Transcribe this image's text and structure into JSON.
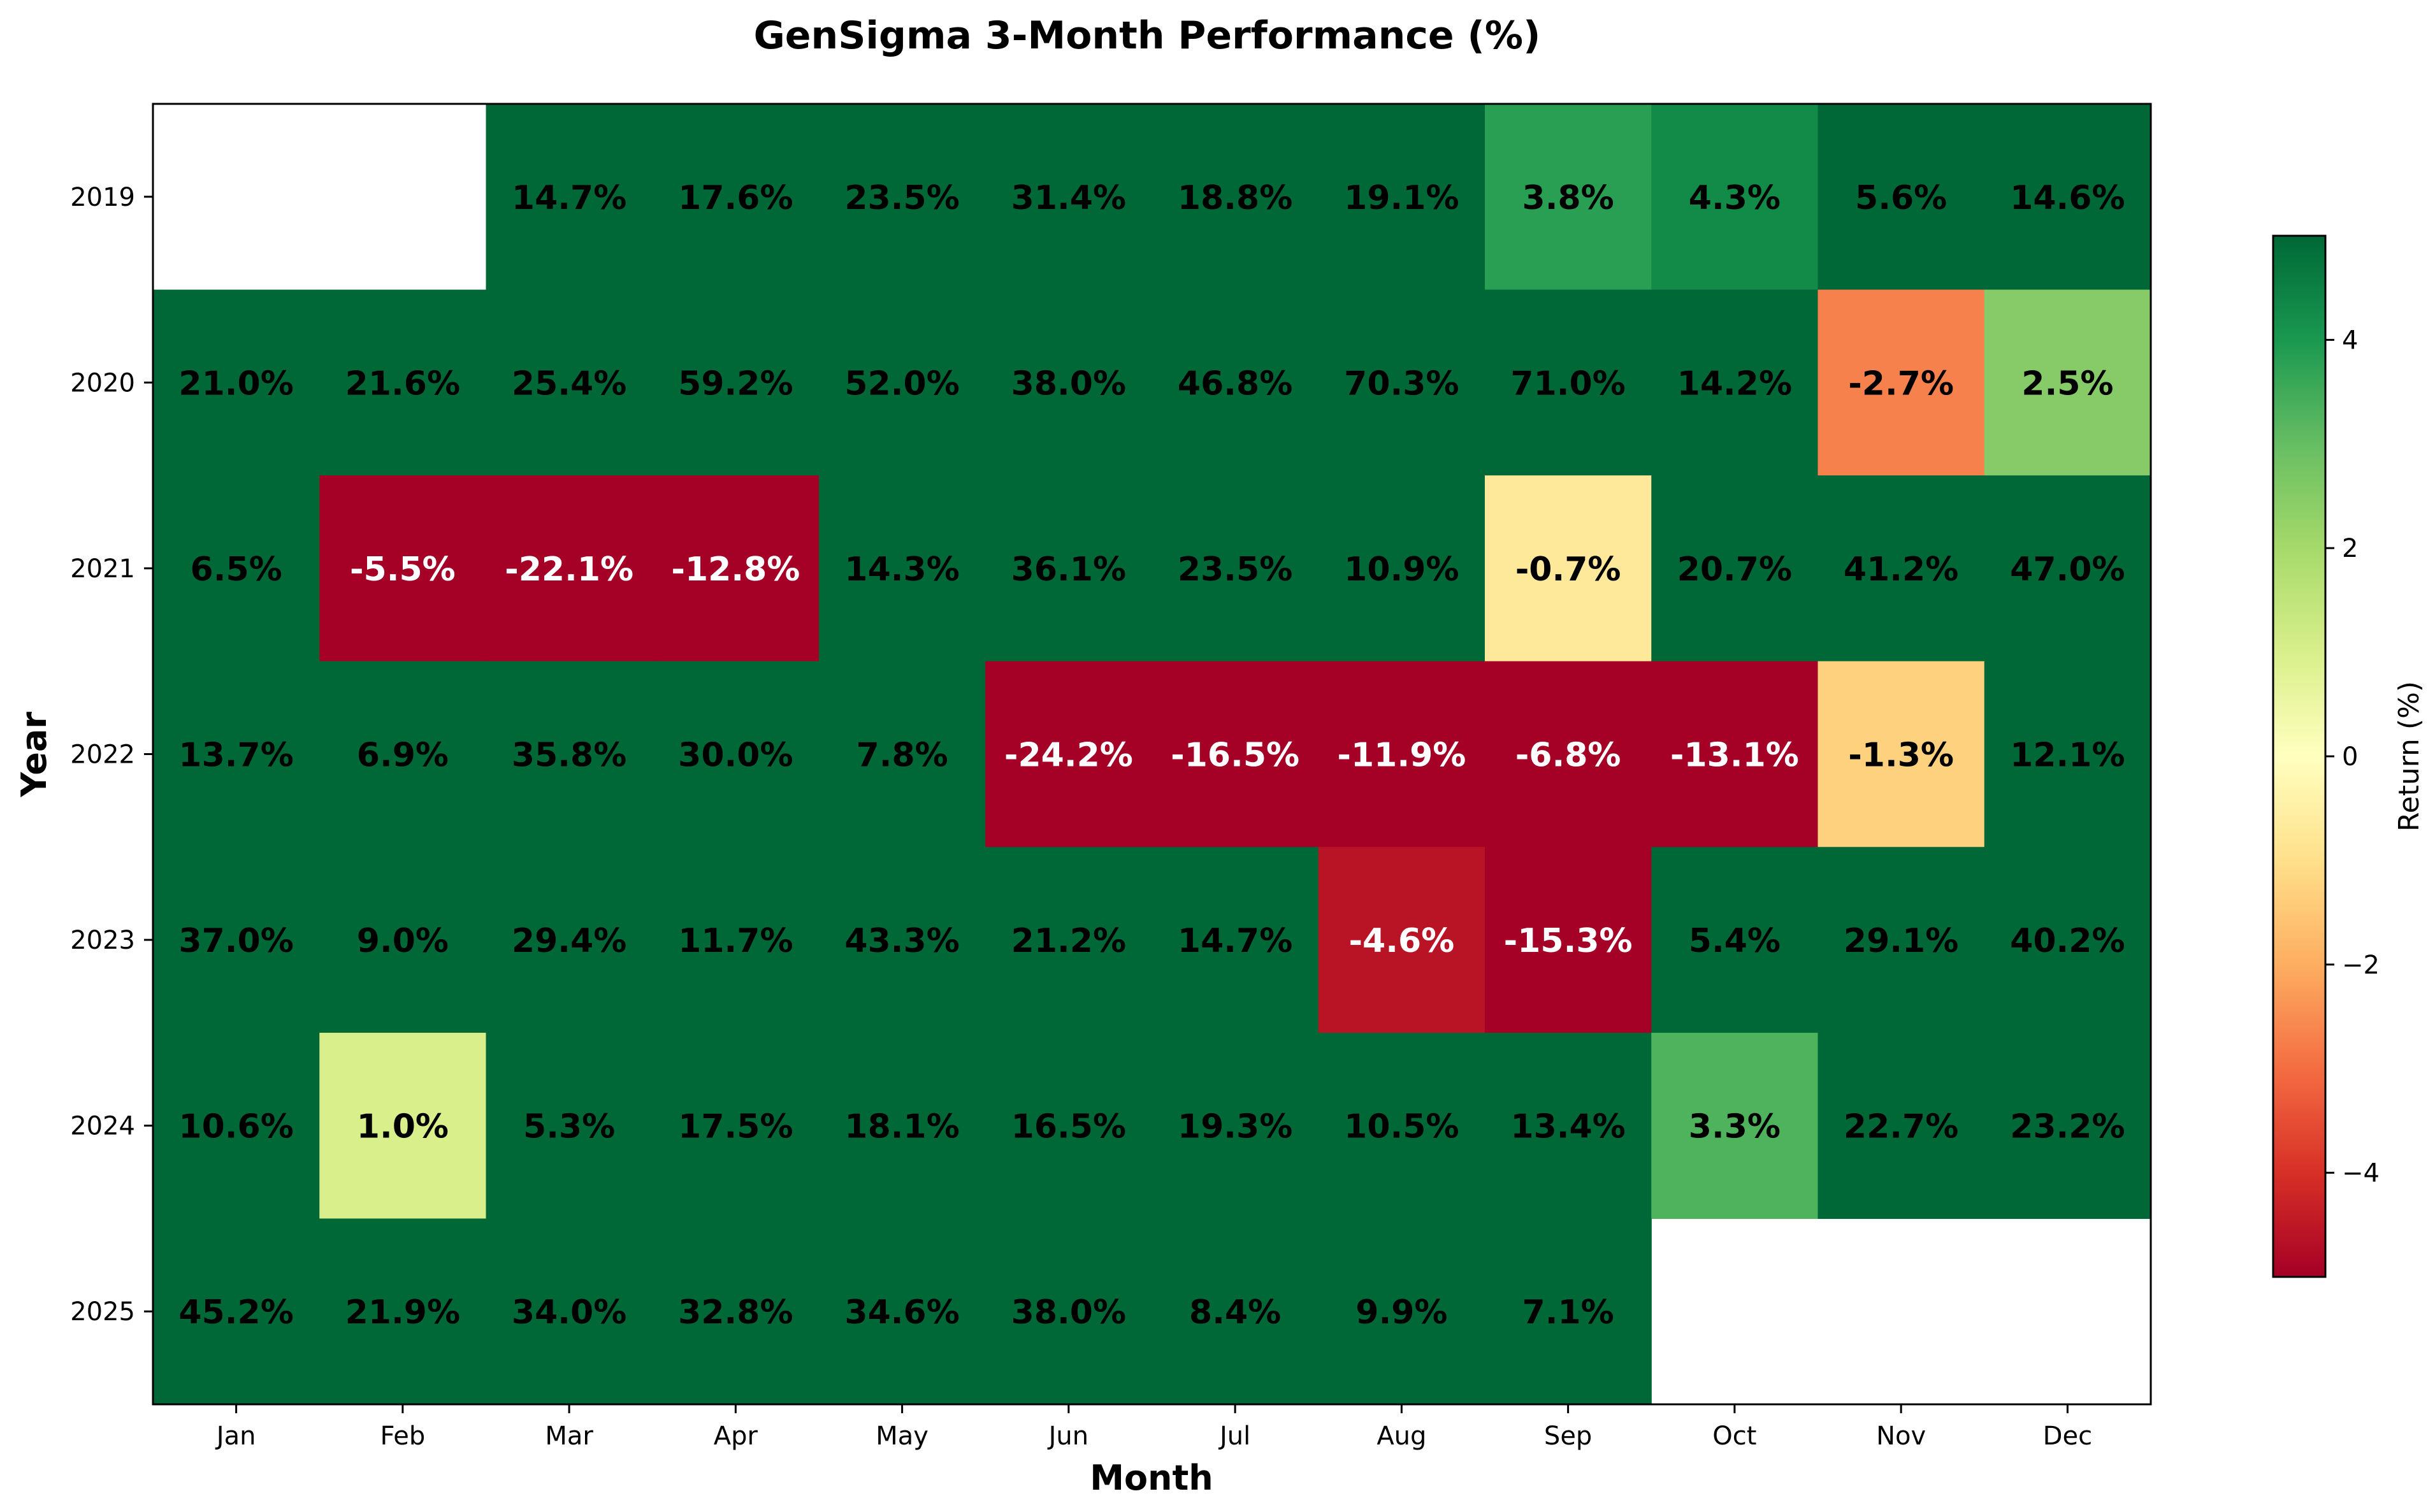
{
  "chart_data": {
    "type": "heatmap",
    "title": "GenSigma 3-Month Performance (%)",
    "xlabel": "Month",
    "ylabel": "Year",
    "colorbar_label": "Return (%)",
    "color_range": [
      -5,
      5
    ],
    "colormap": "RdYlGn",
    "colorbar_ticks": [
      "4",
      "2",
      "0",
      "−2",
      "−4"
    ],
    "colorbar_tick_values": [
      4,
      2,
      0,
      -2,
      -4
    ],
    "months": [
      "Jan",
      "Feb",
      "Mar",
      "Apr",
      "May",
      "Jun",
      "Jul",
      "Aug",
      "Sep",
      "Oct",
      "Nov",
      "Dec"
    ],
    "years": [
      "2019",
      "2020",
      "2021",
      "2022",
      "2023",
      "2024",
      "2025"
    ],
    "values": [
      [
        null,
        null,
        14.7,
        17.6,
        23.5,
        31.4,
        18.8,
        19.1,
        3.8,
        4.3,
        5.6,
        14.6
      ],
      [
        21.0,
        21.6,
        25.4,
        59.2,
        52.0,
        38.0,
        46.8,
        70.3,
        71.0,
        14.2,
        -2.7,
        2.5
      ],
      [
        6.5,
        -5.5,
        -22.1,
        -12.8,
        14.3,
        36.1,
        23.5,
        10.9,
        -0.7,
        20.7,
        41.2,
        47.0
      ],
      [
        13.7,
        6.9,
        35.8,
        30.0,
        7.8,
        -24.2,
        -16.5,
        -11.9,
        -6.8,
        -13.1,
        -1.3,
        12.1
      ],
      [
        37.0,
        9.0,
        29.4,
        11.7,
        43.3,
        21.2,
        14.7,
        -4.6,
        -15.3,
        5.4,
        29.1,
        40.2
      ],
      [
        10.6,
        1.0,
        5.3,
        17.5,
        18.1,
        16.5,
        19.3,
        10.5,
        13.4,
        3.3,
        22.7,
        23.2
      ],
      [
        45.2,
        21.9,
        34.0,
        32.8,
        34.6,
        38.0,
        8.4,
        9.9,
        7.1,
        null,
        null,
        null
      ]
    ],
    "labels": [
      [
        "",
        "",
        "14.7%",
        "17.6%",
        "23.5%",
        "31.4%",
        "18.8%",
        "19.1%",
        "3.8%",
        "4.3%",
        "5.6%",
        "14.6%"
      ],
      [
        "21.0%",
        "21.6%",
        "25.4%",
        "59.2%",
        "52.0%",
        "38.0%",
        "46.8%",
        "70.3%",
        "71.0%",
        "14.2%",
        "-2.7%",
        "2.5%"
      ],
      [
        "6.5%",
        "-5.5%",
        "-22.1%",
        "-12.8%",
        "14.3%",
        "36.1%",
        "23.5%",
        "10.9%",
        "-0.7%",
        "20.7%",
        "41.2%",
        "47.0%"
      ],
      [
        "13.7%",
        "6.9%",
        "35.8%",
        "30.0%",
        "7.8%",
        "-24.2%",
        "-16.5%",
        "-11.9%",
        "-6.8%",
        "-13.1%",
        "-1.3%",
        "12.1%"
      ],
      [
        "37.0%",
        "9.0%",
        "29.4%",
        "11.7%",
        "43.3%",
        "21.2%",
        "14.7%",
        "-4.6%",
        "-15.3%",
        "5.4%",
        "29.1%",
        "40.2%"
      ],
      [
        "10.6%",
        "1.0%",
        "5.3%",
        "17.5%",
        "18.1%",
        "16.5%",
        "19.3%",
        "10.5%",
        "13.4%",
        "3.3%",
        "22.7%",
        "23.2%"
      ],
      [
        "45.2%",
        "21.9%",
        "34.0%",
        "32.8%",
        "34.6%",
        "38.0%",
        "8.4%",
        "9.9%",
        "7.1%",
        "",
        "",
        ""
      ]
    ]
  }
}
